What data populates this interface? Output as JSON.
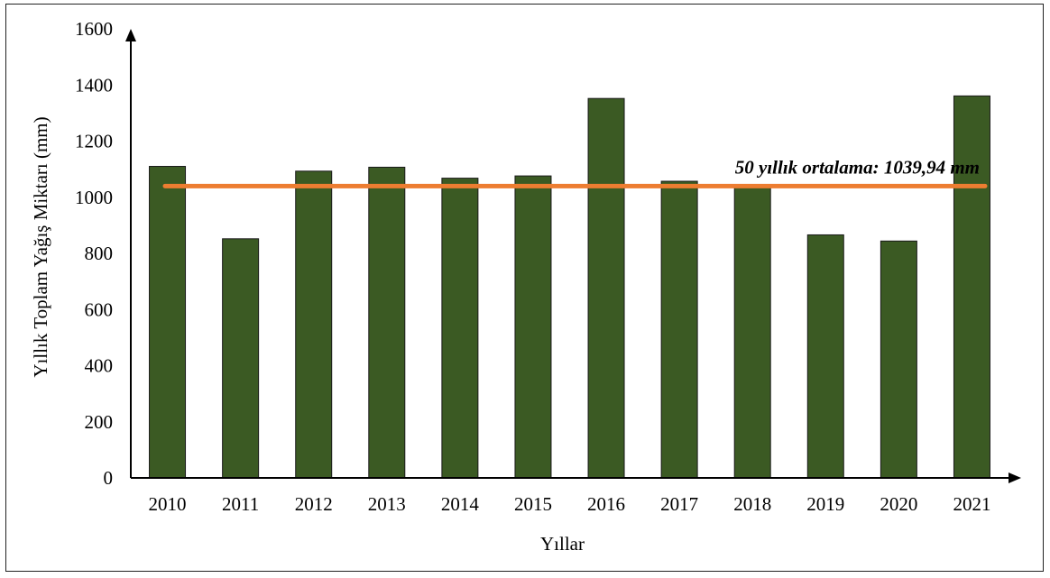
{
  "chart_data": {
    "type": "bar",
    "xlabel": "Yıllar",
    "ylabel": "Yıllık Toplam Yağış Miktarı (mm)",
    "categories": [
      "2010",
      "2011",
      "2012",
      "2013",
      "2014",
      "2015",
      "2016",
      "2017",
      "2018",
      "2019",
      "2020",
      "2021"
    ],
    "values": [
      1110,
      852,
      1093,
      1107,
      1068,
      1076,
      1352,
      1057,
      1037,
      866,
      844,
      1361
    ],
    "ylim": [
      0,
      1600
    ],
    "yticks": [
      0,
      200,
      400,
      600,
      800,
      1000,
      1200,
      1400,
      1600
    ],
    "grid": false,
    "bar_color": "#3b5a23",
    "reference_line": {
      "value": 1039.94,
      "label": "50 yıllık ortalama: 1039,94 mm",
      "color": "#ed7d31"
    }
  }
}
